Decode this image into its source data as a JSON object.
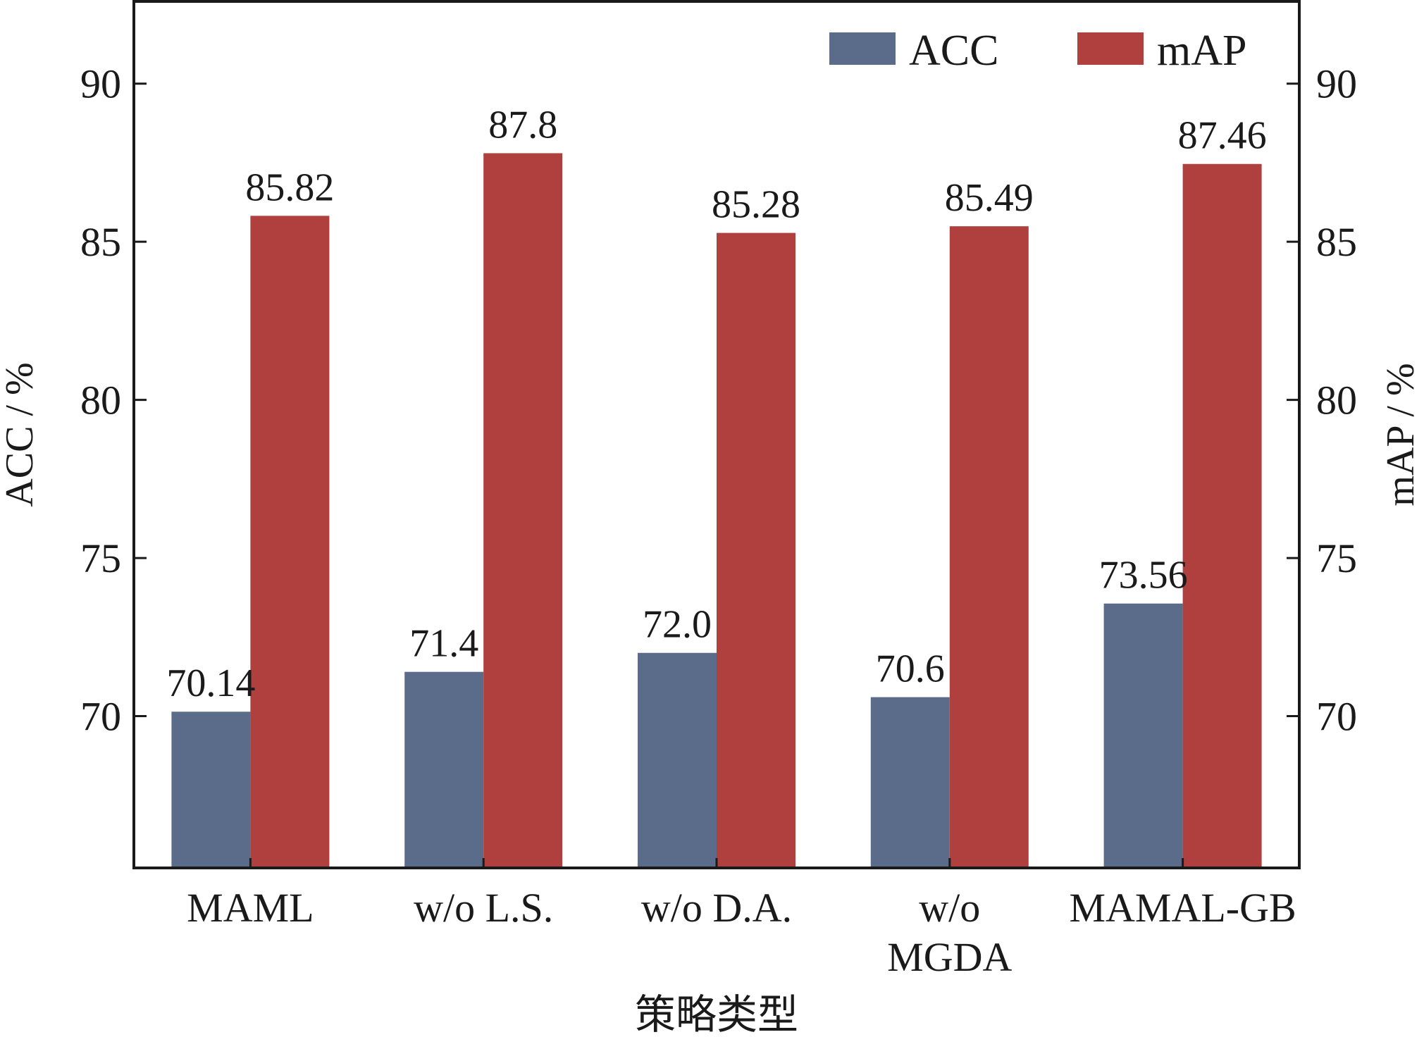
{
  "chart_data": {
    "type": "bar",
    "categories": [
      "MAML",
      "w/o L.S.",
      "w/o D.A.",
      "w/o\nMGDA",
      "MAMAL-GB"
    ],
    "series": [
      {
        "name": "ACC",
        "values": [
          70.14,
          71.4,
          72.0,
          70.6,
          73.56
        ],
        "labels": [
          "70.14",
          "71.4",
          "72.0",
          "70.6",
          "73.56"
        ],
        "color": "#5b6c8a",
        "axis": "left"
      },
      {
        "name": "mAP",
        "values": [
          85.82,
          87.8,
          85.28,
          85.49,
          87.46
        ],
        "labels": [
          "85.82",
          "87.8",
          "85.28",
          "85.49",
          "87.46"
        ],
        "color": "#b0403e",
        "axis": "right"
      }
    ],
    "xlabel": "策略类型",
    "ylabel": "ACC / %",
    "ylabel_right": "mAP / %",
    "ylim": [
      65.2,
      92.6
    ],
    "yticks": [
      70,
      75,
      80,
      85,
      90
    ],
    "legend": "top-right",
    "grid": false
  }
}
